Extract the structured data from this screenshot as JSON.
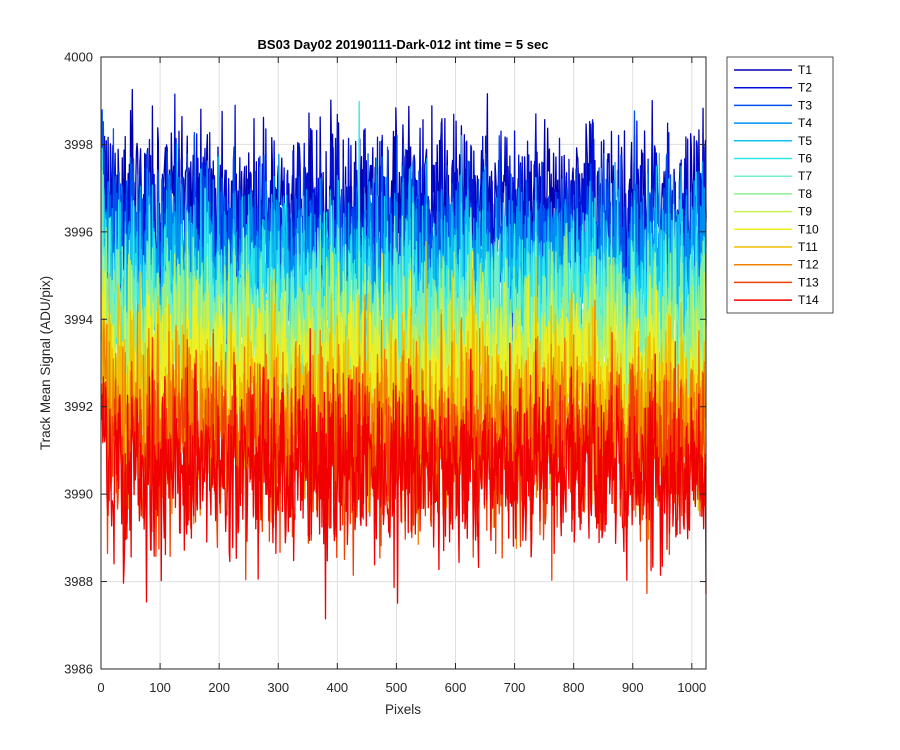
{
  "chart_data": {
    "type": "line",
    "title": "BS03 Day02 20190111-Dark-012 int time = 5 sec",
    "xlabel": "Pixels",
    "ylabel": "Track Mean Signal (ADU/pix)",
    "xlim": [
      0,
      1024
    ],
    "ylim": [
      3986,
      4000
    ],
    "xticks": [
      0,
      100,
      200,
      300,
      400,
      500,
      600,
      700,
      800,
      900,
      1000
    ],
    "yticks": [
      3986,
      3988,
      3990,
      3992,
      3994,
      3996,
      3998,
      4000
    ],
    "grid": true,
    "legend_position": "outside-top-right",
    "n_pixels": 1024,
    "series": [
      {
        "name": "T1",
        "color": "#0000b0",
        "mean": 3996.6,
        "noise": 1.1
      },
      {
        "name": "T2",
        "color": "#0010d8",
        "mean": 3996.2,
        "noise": 1.1
      },
      {
        "name": "T3",
        "color": "#0050f0",
        "mean": 3995.7,
        "noise": 1.1
      },
      {
        "name": "T4",
        "color": "#0090f0",
        "mean": 3995.2,
        "noise": 1.1
      },
      {
        "name": "T5",
        "color": "#10c0f0",
        "mean": 3994.8,
        "noise": 1.1
      },
      {
        "name": "T6",
        "color": "#30e8e8",
        "mean": 3994.3,
        "noise": 1.1
      },
      {
        "name": "T7",
        "color": "#70f0c8",
        "mean": 3993.9,
        "noise": 1.1
      },
      {
        "name": "T8",
        "color": "#90f090",
        "mean": 3993.5,
        "noise": 1.1
      },
      {
        "name": "T9",
        "color": "#c8f050",
        "mean": 3993.0,
        "noise": 1.1
      },
      {
        "name": "T10",
        "color": "#f0f020",
        "mean": 3992.6,
        "noise": 1.1
      },
      {
        "name": "T11",
        "color": "#f0c000",
        "mean": 3992.0,
        "noise": 1.1
      },
      {
        "name": "T12",
        "color": "#f08000",
        "mean": 3991.5,
        "noise": 1.1
      },
      {
        "name": "T13",
        "color": "#f04000",
        "mean": 3990.9,
        "noise": 1.1
      },
      {
        "name": "T14",
        "color": "#f00000",
        "mean": 3990.5,
        "noise": 1.1
      }
    ]
  }
}
